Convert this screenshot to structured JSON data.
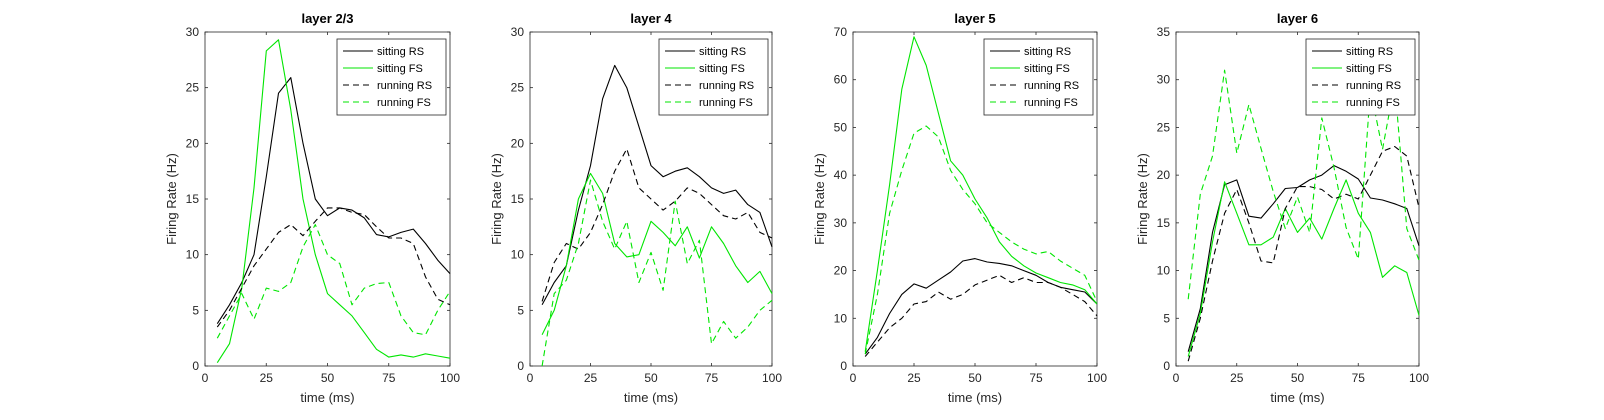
{
  "colors": {
    "rs": "#000000",
    "fs": "#00e600",
    "axis": "#262626"
  },
  "chart_data": [
    {
      "type": "line",
      "title": "layer 2/3",
      "xlabel": "time (ms)",
      "ylabel": "Firing Rate (Hz)",
      "xlim": [
        0,
        100
      ],
      "ylim": [
        0,
        30
      ],
      "xticks": [
        0,
        25,
        50,
        75,
        100
      ],
      "yticks": [
        0,
        5,
        10,
        15,
        20,
        25,
        30
      ],
      "legend_position": "top-right",
      "x": [
        5,
        10,
        15,
        20,
        25,
        30,
        35,
        40,
        45,
        50,
        55,
        60,
        65,
        70,
        75,
        80,
        85,
        90,
        95,
        100
      ],
      "series": [
        {
          "name": "sitting RS",
          "color": "#000000",
          "dash": "solid",
          "values": [
            3.8,
            5.5,
            7.5,
            10,
            17,
            24.5,
            25.9,
            20,
            15,
            13.5,
            14.2,
            14,
            13.3,
            11.8,
            11.6,
            12,
            12.3,
            11,
            9.5,
            8.3
          ]
        },
        {
          "name": "sitting FS",
          "color": "#00e600",
          "dash": "solid",
          "values": [
            0.3,
            2,
            7,
            16,
            28.3,
            29.3,
            23,
            15,
            10,
            6.5,
            5.5,
            4.5,
            3,
            1.5,
            0.8,
            1,
            0.8,
            1.1,
            0.9,
            0.7
          ]
        },
        {
          "name": "running RS",
          "color": "#000000",
          "dash": "dashed",
          "values": [
            3.5,
            5,
            7,
            9,
            10.5,
            12,
            12.7,
            11.7,
            13,
            14.2,
            14.2,
            13.8,
            13.6,
            12.5,
            11.5,
            11.5,
            11,
            8,
            6,
            5.5
          ]
        },
        {
          "name": "running FS",
          "color": "#00e600",
          "dash": "dashed",
          "values": [
            2.5,
            4.5,
            6.5,
            4.2,
            7,
            6.7,
            7.5,
            10.7,
            12.7,
            10,
            9.2,
            5.5,
            7,
            7.4,
            7.5,
            4.5,
            3,
            2.8,
            5,
            6.7
          ]
        }
      ]
    },
    {
      "type": "line",
      "title": "layer 4",
      "xlabel": "time (ms)",
      "ylabel": "Firing Rate (Hz)",
      "xlim": [
        0,
        100
      ],
      "ylim": [
        0,
        30
      ],
      "xticks": [
        0,
        25,
        50,
        75,
        100
      ],
      "yticks": [
        0,
        5,
        10,
        15,
        20,
        25,
        30
      ],
      "legend_position": "top-right",
      "x": [
        5,
        10,
        15,
        20,
        25,
        30,
        35,
        40,
        45,
        50,
        55,
        60,
        65,
        70,
        75,
        80,
        85,
        90,
        95,
        100
      ],
      "series": [
        {
          "name": "sitting RS",
          "color": "#000000",
          "dash": "solid",
          "values": [
            5.5,
            7.5,
            9,
            14,
            18,
            24,
            27,
            25,
            21.5,
            18,
            17,
            17.5,
            17.8,
            17,
            16,
            15.5,
            15.8,
            14.5,
            13.8,
            10.7
          ]
        },
        {
          "name": "sitting FS",
          "color": "#00e600",
          "dash": "solid",
          "values": [
            2.8,
            5,
            9,
            15,
            17.3,
            15.5,
            11,
            9.8,
            10,
            13,
            12,
            10.8,
            12.5,
            9.7,
            12.5,
            11,
            9,
            7.5,
            8.5,
            6.5
          ]
        },
        {
          "name": "running RS",
          "color": "#000000",
          "dash": "dashed",
          "values": [
            5.8,
            9.3,
            11,
            10.5,
            12,
            14.5,
            17.5,
            19.5,
            16,
            15,
            14,
            14.8,
            16,
            15.5,
            14.5,
            13.5,
            13.2,
            13.8,
            12,
            11.5
          ]
        },
        {
          "name": "running FS",
          "color": "#00e600",
          "dash": "dashed",
          "values": [
            0,
            6.5,
            7.7,
            11,
            16.7,
            13,
            10.5,
            13,
            7.5,
            10.2,
            6.8,
            14.8,
            9.2,
            11.3,
            2,
            4,
            2.5,
            3.5,
            5,
            5.9
          ]
        }
      ]
    },
    {
      "type": "line",
      "title": "layer 5",
      "xlabel": "time (ms)",
      "ylabel": "Firing Rate (Hz)",
      "xlim": [
        0,
        100
      ],
      "ylim": [
        0,
        70
      ],
      "xticks": [
        0,
        25,
        50,
        75,
        100
      ],
      "yticks": [
        0,
        10,
        20,
        30,
        40,
        50,
        60,
        70
      ],
      "legend_position": "top-right",
      "x": [
        5,
        10,
        15,
        20,
        25,
        30,
        35,
        40,
        45,
        50,
        55,
        60,
        65,
        70,
        75,
        80,
        85,
        90,
        95,
        100
      ],
      "series": [
        {
          "name": "sitting RS",
          "color": "#000000",
          "dash": "solid",
          "values": [
            2.5,
            6,
            11,
            15,
            17.2,
            16.3,
            18,
            19.7,
            22,
            22.5,
            21.8,
            21.5,
            21,
            20,
            19,
            17.5,
            16.5,
            16,
            15.5,
            13
          ]
        },
        {
          "name": "sitting FS",
          "color": "#00e600",
          "dash": "solid",
          "values": [
            3,
            20,
            38,
            58,
            69,
            63,
            53,
            43,
            40,
            35,
            31,
            26,
            23,
            21,
            19.5,
            18.5,
            17.5,
            17,
            16,
            13
          ]
        },
        {
          "name": "running RS",
          "color": "#000000",
          "dash": "dashed",
          "values": [
            2,
            5,
            8,
            10,
            13,
            13.5,
            15.5,
            14,
            15,
            17,
            18,
            19,
            17.5,
            18.5,
            17.5,
            17.5,
            16.5,
            15,
            13.5,
            10.5
          ]
        },
        {
          "name": "running FS",
          "color": "#00e600",
          "dash": "dashed",
          "values": [
            2.5,
            15,
            32,
            41,
            48.8,
            50.3,
            48,
            41,
            37,
            34,
            30,
            28,
            26,
            24.5,
            23.5,
            24,
            22,
            20.5,
            19,
            13.5
          ]
        }
      ]
    },
    {
      "type": "line",
      "title": "layer 6",
      "xlabel": "time (ms)",
      "ylabel": "Firing Rate (Hz)",
      "xlim": [
        0,
        100
      ],
      "ylim": [
        0,
        35
      ],
      "xticks": [
        0,
        25,
        50,
        75,
        100
      ],
      "yticks": [
        0,
        5,
        10,
        15,
        20,
        25,
        30,
        35
      ],
      "legend_position": "top-right",
      "x": [
        5,
        10,
        15,
        20,
        25,
        30,
        35,
        40,
        45,
        50,
        55,
        60,
        65,
        70,
        75,
        80,
        85,
        90,
        95,
        100
      ],
      "series": [
        {
          "name": "sitting RS",
          "color": "#000000",
          "dash": "solid",
          "values": [
            1.5,
            6,
            14,
            19,
            19.5,
            15.7,
            15.5,
            17,
            18.6,
            18.7,
            19.5,
            20,
            21,
            20.4,
            19.6,
            17.6,
            17.4,
            17,
            16.5,
            12.6
          ]
        },
        {
          "name": "sitting FS",
          "color": "#00e600",
          "dash": "solid",
          "values": [
            1,
            5.5,
            13,
            19.3,
            16,
            12.7,
            12.7,
            13.5,
            16.5,
            14,
            15.5,
            13.3,
            16.5,
            19.5,
            16,
            14,
            9.3,
            10.5,
            9.8,
            5.3
          ]
        },
        {
          "name": "running RS",
          "color": "#000000",
          "dash": "dashed",
          "values": [
            0.5,
            5,
            11,
            16,
            18.5,
            15,
            11,
            10.8,
            16.5,
            18.8,
            18.8,
            18.5,
            17.5,
            18,
            17.5,
            20,
            22.5,
            23,
            22,
            16.6
          ]
        },
        {
          "name": "running FS",
          "color": "#00e600",
          "dash": "dashed",
          "values": [
            7,
            18,
            22,
            31,
            22.3,
            27.4,
            22.8,
            18.3,
            14.4,
            17.7,
            14,
            26,
            20.8,
            14.5,
            11.2,
            29,
            22.7,
            29.6,
            14.4,
            11.1
          ]
        }
      ]
    }
  ]
}
